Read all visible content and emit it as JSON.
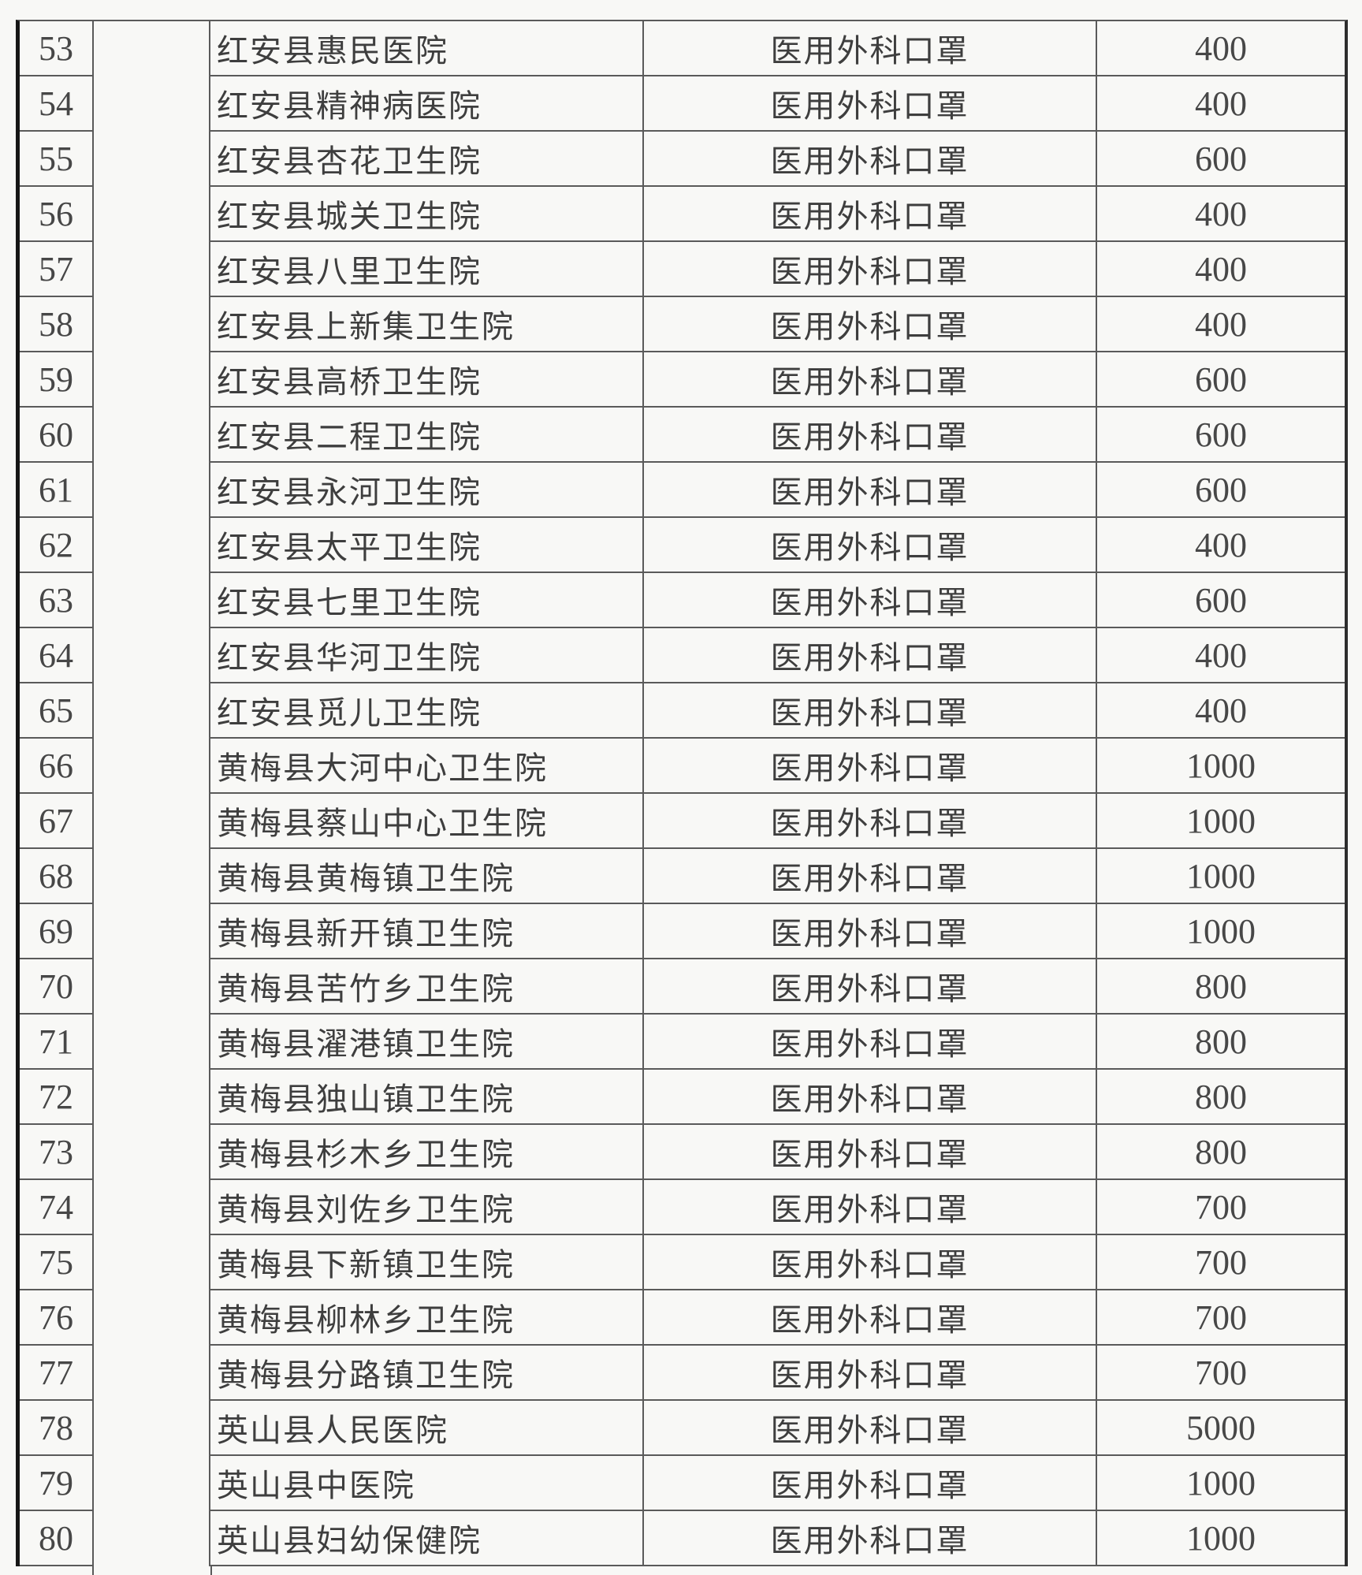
{
  "table": {
    "rows": [
      {
        "no": "53",
        "name": "红安县惠民医院",
        "item": "医用外科口罩",
        "qty": "400"
      },
      {
        "no": "54",
        "name": "红安县精神病医院",
        "item": "医用外科口罩",
        "qty": "400"
      },
      {
        "no": "55",
        "name": "红安县杏花卫生院",
        "item": "医用外科口罩",
        "qty": "600"
      },
      {
        "no": "56",
        "name": "红安县城关卫生院",
        "item": "医用外科口罩",
        "qty": "400"
      },
      {
        "no": "57",
        "name": "红安县八里卫生院",
        "item": "医用外科口罩",
        "qty": "400"
      },
      {
        "no": "58",
        "name": "红安县上新集卫生院",
        "item": "医用外科口罩",
        "qty": "400"
      },
      {
        "no": "59",
        "name": "红安县高桥卫生院",
        "item": "医用外科口罩",
        "qty": "600"
      },
      {
        "no": "60",
        "name": "红安县二程卫生院",
        "item": "医用外科口罩",
        "qty": "600"
      },
      {
        "no": "61",
        "name": "红安县永河卫生院",
        "item": "医用外科口罩",
        "qty": "600"
      },
      {
        "no": "62",
        "name": "红安县太平卫生院",
        "item": "医用外科口罩",
        "qty": "400"
      },
      {
        "no": "63",
        "name": "红安县七里卫生院",
        "item": "医用外科口罩",
        "qty": "600"
      },
      {
        "no": "64",
        "name": "红安县华河卫生院",
        "item": "医用外科口罩",
        "qty": "400"
      },
      {
        "no": "65",
        "name": "红安县觅儿卫生院",
        "item": "医用外科口罩",
        "qty": "400"
      },
      {
        "no": "66",
        "name": "黄梅县大河中心卫生院",
        "item": "医用外科口罩",
        "qty": "1000"
      },
      {
        "no": "67",
        "name": "黄梅县蔡山中心卫生院",
        "item": "医用外科口罩",
        "qty": "1000"
      },
      {
        "no": "68",
        "name": "黄梅县黄梅镇卫生院",
        "item": "医用外科口罩",
        "qty": "1000"
      },
      {
        "no": "69",
        "name": "黄梅县新开镇卫生院",
        "item": "医用外科口罩",
        "qty": "1000"
      },
      {
        "no": "70",
        "name": "黄梅县苦竹乡卫生院",
        "item": "医用外科口罩",
        "qty": "800"
      },
      {
        "no": "71",
        "name": "黄梅县濯港镇卫生院",
        "item": "医用外科口罩",
        "qty": "800"
      },
      {
        "no": "72",
        "name": "黄梅县独山镇卫生院",
        "item": "医用外科口罩",
        "qty": "800"
      },
      {
        "no": "73",
        "name": "黄梅县杉木乡卫生院",
        "item": "医用外科口罩",
        "qty": "800"
      },
      {
        "no": "74",
        "name": "黄梅县刘佐乡卫生院",
        "item": "医用外科口罩",
        "qty": "700"
      },
      {
        "no": "75",
        "name": "黄梅县下新镇卫生院",
        "item": "医用外科口罩",
        "qty": "700"
      },
      {
        "no": "76",
        "name": "黄梅县柳林乡卫生院",
        "item": "医用外科口罩",
        "qty": "700"
      },
      {
        "no": "77",
        "name": "黄梅县分路镇卫生院",
        "item": "医用外科口罩",
        "qty": "700"
      },
      {
        "no": "78",
        "name": "英山县人民医院",
        "item": "医用外科口罩",
        "qty": "5000"
      },
      {
        "no": "79",
        "name": "英山县中医院",
        "item": "医用外科口罩",
        "qty": "1000"
      },
      {
        "no": "80",
        "name": "英山县妇幼保健院",
        "item": "医用外科口罩",
        "qty": "1000"
      }
    ]
  }
}
